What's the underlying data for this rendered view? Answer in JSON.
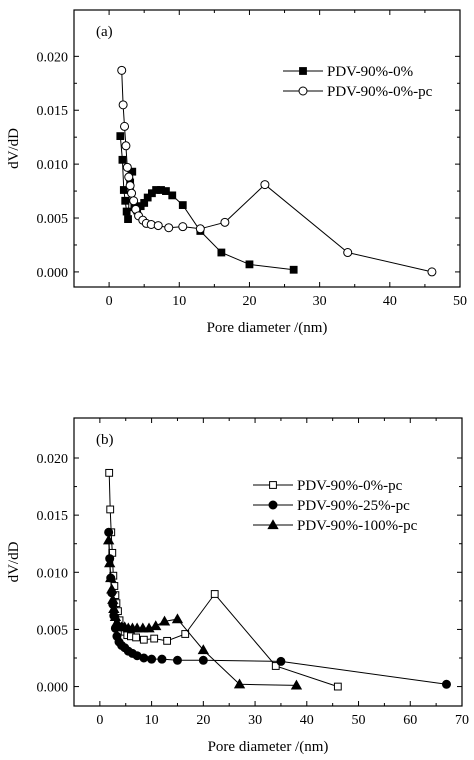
{
  "chart_data": [
    {
      "type": "line",
      "title": "(a)",
      "xlabel": "Pore diameter /(nm)",
      "ylabel": "dV/dD",
      "xlim": [
        -5,
        50
      ],
      "ylim": [
        -0.0014,
        0.0243
      ],
      "xticks": [
        0,
        10,
        20,
        30,
        40,
        50
      ],
      "xtick_labels": [
        "0",
        "10",
        "20",
        "30",
        "40",
        "50"
      ],
      "yticks": [
        0,
        0.005,
        0.01,
        0.015,
        0.02
      ],
      "ytick_labels": [
        "0.000",
        "0.005",
        "0.010",
        "0.015",
        "0.020"
      ],
      "grid": false,
      "legend_position": "top-right",
      "series": [
        {
          "name": "PDV-90%-0%",
          "marker": "filled-square",
          "x": [
            1.6,
            1.9,
            2.1,
            2.3,
            2.5,
            2.7,
            3.0,
            3.3,
            3.6,
            4.0,
            4.5,
            5.0,
            5.5,
            6.1,
            6.7,
            7.4,
            8.1,
            9.0,
            10.5,
            13.0,
            16.0,
            20.0,
            26.3
          ],
          "y": [
            0.0126,
            0.0104,
            0.0076,
            0.0066,
            0.0056,
            0.0049,
            0.0083,
            0.0093,
            0.006,
            0.0057,
            0.0061,
            0.0064,
            0.0069,
            0.0073,
            0.0076,
            0.0076,
            0.0075,
            0.0071,
            0.0062,
            0.0038,
            0.0018,
            0.0007,
            0.0002
          ]
        },
        {
          "name": "PDV-90%-0%-pc",
          "marker": "open-circle",
          "x": [
            1.8,
            2.0,
            2.2,
            2.4,
            2.6,
            2.8,
            3.0,
            3.2,
            3.5,
            3.8,
            4.2,
            4.8,
            5.3,
            6.0,
            7.0,
            8.5,
            10.5,
            13.0,
            16.5,
            22.2,
            34.0,
            46.0
          ],
          "y": [
            0.0187,
            0.0155,
            0.0135,
            0.0117,
            0.0097,
            0.0088,
            0.008,
            0.0073,
            0.0066,
            0.0058,
            0.0052,
            0.0048,
            0.0045,
            0.0044,
            0.0043,
            0.0041,
            0.0042,
            0.004,
            0.0046,
            0.0081,
            0.0018,
            0.0
          ]
        }
      ]
    },
    {
      "type": "line",
      "title": "(b)",
      "xlabel": "Pore diameter /(nm)",
      "ylabel": "dV/dD",
      "xlim": [
        -5,
        70
      ],
      "ylim": [
        -0.0017,
        0.0235
      ],
      "xticks": [
        0,
        10,
        20,
        30,
        40,
        50,
        60,
        70
      ],
      "xtick_labels": [
        "0",
        "10",
        "20",
        "30",
        "40",
        "50",
        "60",
        "70"
      ],
      "yticks": [
        0,
        0.005,
        0.01,
        0.015,
        0.02
      ],
      "ytick_labels": [
        "0.000",
        "0.005",
        "0.010",
        "0.015",
        "0.020"
      ],
      "grid": false,
      "legend_position": "top-right",
      "series": [
        {
          "name": "PDV-90%-0%-pc",
          "marker": "open-square",
          "x": [
            1.8,
            2.0,
            2.2,
            2.4,
            2.6,
            2.8,
            3.0,
            3.2,
            3.5,
            3.8,
            4.2,
            4.8,
            5.3,
            6.0,
            7.0,
            8.5,
            10.5,
            13.0,
            16.5,
            22.2,
            34.0,
            46.0
          ],
          "y": [
            0.0187,
            0.0155,
            0.0135,
            0.0117,
            0.0097,
            0.0088,
            0.008,
            0.0073,
            0.0066,
            0.0058,
            0.0052,
            0.0048,
            0.0045,
            0.0044,
            0.0043,
            0.0041,
            0.0042,
            0.004,
            0.0046,
            0.0081,
            0.0018,
            0.0
          ]
        },
        {
          "name": "PDV-90%-25%-pc",
          "marker": "filled-circle",
          "x": [
            1.7,
            1.9,
            2.1,
            2.3,
            2.5,
            2.7,
            3.0,
            3.3,
            3.7,
            4.2,
            4.8,
            5.5,
            6.3,
            7.2,
            8.5,
            10.0,
            12.0,
            15.0,
            20.0,
            35.0,
            67.0
          ],
          "y": [
            0.0135,
            0.0112,
            0.0095,
            0.0082,
            0.0072,
            0.0062,
            0.0051,
            0.0044,
            0.0039,
            0.0036,
            0.0034,
            0.0031,
            0.0029,
            0.0027,
            0.0025,
            0.0024,
            0.0024,
            0.0023,
            0.0023,
            0.0022,
            0.0002
          ]
        },
        {
          "name": "PDV-90%-100%-pc",
          "marker": "filled-triangle",
          "x": [
            1.7,
            1.9,
            2.1,
            2.3,
            2.5,
            2.7,
            3.0,
            3.3,
            3.7,
            4.2,
            4.8,
            5.5,
            6.3,
            7.2,
            8.3,
            9.5,
            10.8,
            12.5,
            15.0,
            20.0,
            27.0,
            38.0
          ],
          "y": [
            0.0128,
            0.0108,
            0.0095,
            0.0085,
            0.0076,
            0.0068,
            0.0061,
            0.0056,
            0.0053,
            0.0052,
            0.0052,
            0.0051,
            0.0051,
            0.0051,
            0.0051,
            0.0051,
            0.0053,
            0.0057,
            0.0059,
            0.0032,
            0.0002,
            0.0001
          ]
        }
      ]
    }
  ]
}
